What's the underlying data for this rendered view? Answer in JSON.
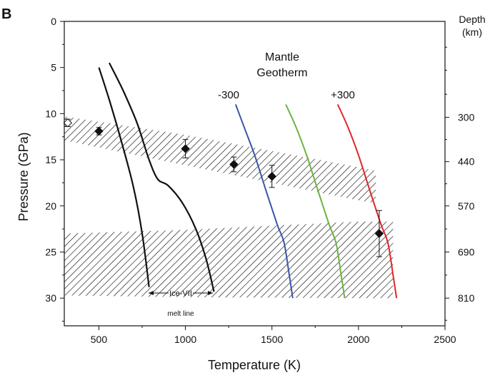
{
  "panel_label": "B",
  "chart_data": {
    "type": "line",
    "xlabel": "Temperature (K)",
    "ylabel": "Pressure (GPa)",
    "right_axis_label_line1": "Depth",
    "right_axis_label_line2": "(km)",
    "xlim": [
      300,
      2500
    ],
    "ylim": [
      33,
      0
    ],
    "x_ticks": [
      500,
      1000,
      1500,
      2000,
      2500
    ],
    "y_ticks": [
      0,
      5,
      10,
      15,
      20,
      25,
      30
    ],
    "y_minor_ticks": [
      2.5,
      7.5,
      12.5,
      17.5,
      22.5,
      27.5,
      32.5
    ],
    "depth_ticks": [
      {
        "pressure": 10.4,
        "label": "300"
      },
      {
        "pressure": 15.2,
        "label": "440"
      },
      {
        "pressure": 20.0,
        "label": "570"
      },
      {
        "pressure": 25.0,
        "label": "690"
      },
      {
        "pressure": 30.0,
        "label": "810"
      }
    ],
    "depth_minor_ticks": [
      2.8,
      5.3,
      7.9,
      12.8,
      17.6,
      22.5,
      27.5,
      32.4
    ],
    "grid": false,
    "annotations": {
      "mantle_line1": "Mantle",
      "mantle_line2": "Geotherm",
      "minus300": "-300",
      "plus300": "+300",
      "ice_label": "Ice-VII",
      "melt_line": "melt line"
    },
    "hatched_bands": [
      {
        "upper": [
          [
            300,
            10.3
          ],
          [
            1000,
            12.3
          ],
          [
            2000,
            15.8
          ],
          [
            2100,
            16.2
          ]
        ],
        "lower": [
          [
            300,
            12.9
          ],
          [
            1000,
            15.6
          ],
          [
            2000,
            19.4
          ],
          [
            2100,
            19.7
          ]
        ]
      },
      {
        "upper": [
          [
            300,
            23.0
          ],
          [
            1000,
            22.6
          ],
          [
            2000,
            21.7
          ],
          [
            2200,
            21.7
          ]
        ],
        "lower": [
          [
            300,
            29.7
          ],
          [
            1000,
            29.9
          ],
          [
            2000,
            30.0
          ],
          [
            2200,
            30.0
          ]
        ]
      }
    ],
    "ice_curves": [
      {
        "name": "left",
        "color": "#111111",
        "points": [
          [
            500,
            5
          ],
          [
            560,
            8.5
          ],
          [
            630,
            13
          ],
          [
            700,
            18
          ],
          [
            750,
            23
          ],
          [
            790,
            28.8
          ]
        ]
      },
      {
        "name": "right",
        "color": "#111111",
        "points": [
          [
            560,
            4.5
          ],
          [
            640,
            7.5
          ],
          [
            720,
            11
          ],
          [
            790,
            15
          ],
          [
            840,
            17.1
          ],
          [
            900,
            17.8
          ],
          [
            980,
            19.6
          ],
          [
            1060,
            22.5
          ],
          [
            1120,
            25.8
          ],
          [
            1165,
            29.3
          ]
        ]
      }
    ],
    "series": [
      {
        "name": "-300",
        "color": "#3b55a6",
        "points": [
          [
            1290,
            9
          ],
          [
            1340,
            11.5
          ],
          [
            1400,
            14.5
          ],
          [
            1460,
            18
          ],
          [
            1530,
            22
          ],
          [
            1570,
            24
          ],
          [
            1600,
            27.5
          ],
          [
            1620,
            30
          ]
        ]
      },
      {
        "name": "",
        "color": "#6ab43e",
        "points": [
          [
            1580,
            9
          ],
          [
            1640,
            11.5
          ],
          [
            1700,
            14.5
          ],
          [
            1760,
            18
          ],
          [
            1830,
            22
          ],
          [
            1870,
            24
          ],
          [
            1900,
            27.5
          ],
          [
            1920,
            30
          ]
        ]
      },
      {
        "name": "+300",
        "color": "#e0262a",
        "points": [
          [
            1880,
            9
          ],
          [
            1940,
            11.5
          ],
          [
            2000,
            14.5
          ],
          [
            2060,
            18
          ],
          [
            2130,
            22
          ],
          [
            2170,
            24
          ],
          [
            2200,
            27.5
          ],
          [
            2220,
            30
          ]
        ]
      }
    ],
    "data_points": [
      {
        "x": 320,
        "y": 11.0,
        "err": 0.4,
        "open": true
      },
      {
        "x": 500,
        "y": 11.9,
        "err": 0.4,
        "open": false
      },
      {
        "x": 1000,
        "y": 13.8,
        "err": 1.0,
        "open": false
      },
      {
        "x": 1280,
        "y": 15.5,
        "err": 0.8,
        "open": false
      },
      {
        "x": 1500,
        "y": 16.8,
        "err": 1.2,
        "open": false
      },
      {
        "x": 2120,
        "y": 23.0,
        "err": 2.5,
        "open": false
      }
    ]
  }
}
